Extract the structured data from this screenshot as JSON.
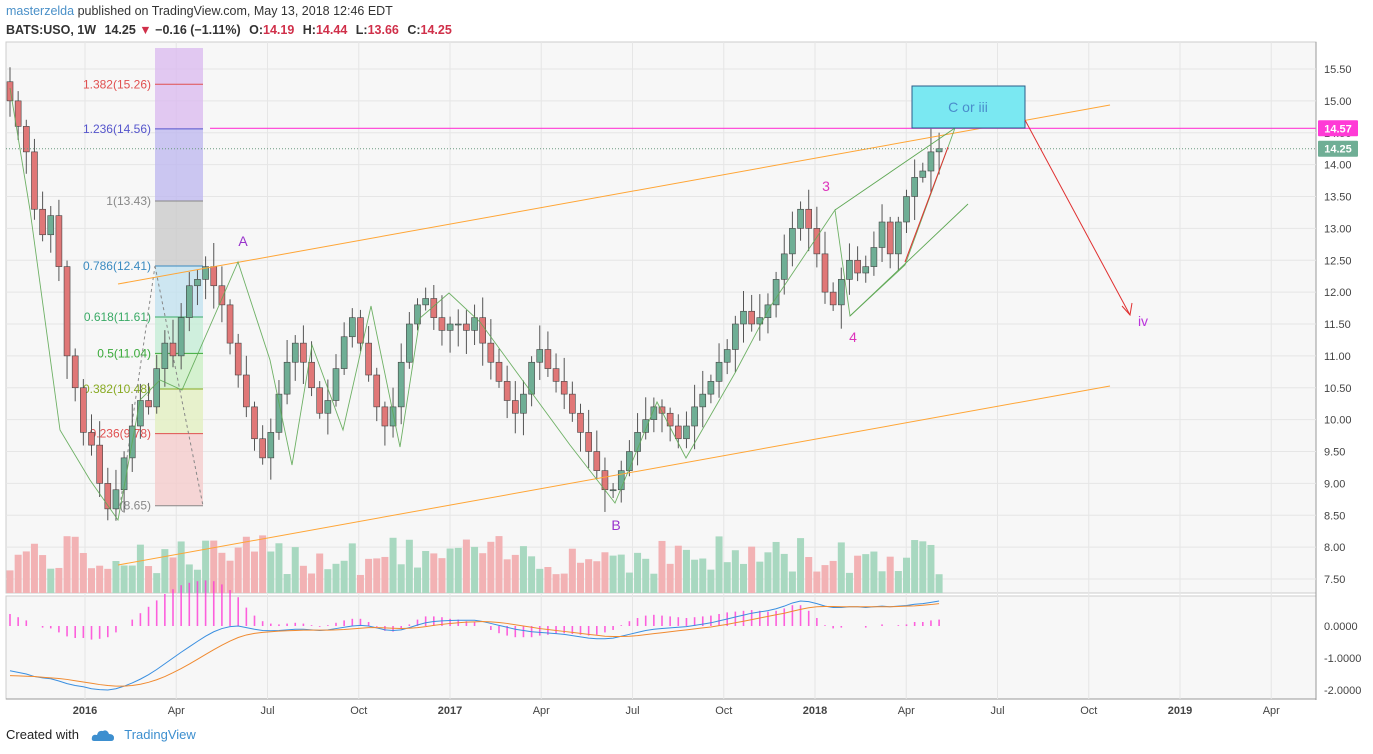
{
  "header": {
    "author": "masterzelda",
    "published_text": "published on TradingView.com, May 13, 2018 12:46 EDT",
    "symbol": "BATS:USO, 1W",
    "last": "14.25",
    "change": "−0.16 (−1.11%)",
    "open_label": "O:",
    "open": "14.19",
    "high_label": "H:",
    "high": "14.44",
    "low_label": "L:",
    "low": "13.66",
    "close_label": "C:",
    "close": "14.25"
  },
  "footer": {
    "created_with": "Created with",
    "brand": "TradingView"
  },
  "colors": {
    "up": "#6fae95",
    "down": "#e07777",
    "up_vol": "#a8d8c0",
    "down_vol": "#f2b2b4",
    "channel": "#ffa535",
    "magenta_line": "#ff3ad6",
    "wave_label": "#c040e0",
    "green_wave": "#5fa855",
    "target_arrow": "#e03030",
    "box": "#7ae8f2",
    "price_badge": "#6fae95",
    "target_badge": "#ff3ad6"
  },
  "chart_data": {
    "type": "candlestick",
    "title": "",
    "y_axis": {
      "min": 7.3,
      "max": 15.8,
      "ticks": [
        "7.50",
        "8.00",
        "8.50",
        "9.00",
        "9.50",
        "10.00",
        "10.50",
        "11.00",
        "11.50",
        "12.00",
        "12.50",
        "13.00",
        "13.50",
        "14.00",
        "14.50",
        "15.00",
        "15.50"
      ]
    },
    "x_axis_labels": [
      {
        "text": "2016",
        "date": "2016-01"
      },
      {
        "text": "Apr",
        "date": "2016-04"
      },
      {
        "text": "Jul",
        "date": "2016-07"
      },
      {
        "text": "Oct",
        "date": "2016-10"
      },
      {
        "text": "2017",
        "date": "2017-01"
      },
      {
        "text": "Apr",
        "date": "2017-04"
      },
      {
        "text": "Jul",
        "date": "2017-07"
      },
      {
        "text": "Oct",
        "date": "2017-10"
      },
      {
        "text": "2018",
        "date": "2018-01"
      },
      {
        "text": "Apr",
        "date": "2018-04"
      },
      {
        "text": "Jul",
        "date": "2018-07"
      },
      {
        "text": "Oct",
        "date": "2018-10"
      },
      {
        "text": "2019",
        "date": "2019-01"
      },
      {
        "text": "Apr",
        "date": "2019-04"
      }
    ],
    "close_series": [
      15.0,
      14.6,
      14.2,
      13.3,
      12.9,
      13.2,
      12.4,
      11.0,
      10.5,
      9.8,
      9.6,
      9.0,
      8.6,
      8.9,
      9.4,
      9.9,
      10.3,
      10.2,
      10.8,
      11.2,
      11.0,
      11.6,
      12.1,
      12.2,
      12.4,
      12.1,
      11.8,
      11.2,
      10.7,
      10.2,
      9.7,
      9.4,
      9.8,
      10.4,
      10.9,
      11.2,
      10.9,
      10.5,
      10.1,
      10.3,
      10.8,
      11.3,
      11.6,
      11.2,
      10.7,
      10.2,
      9.9,
      10.2,
      10.9,
      11.5,
      11.8,
      11.9,
      11.6,
      11.4,
      11.5,
      11.5,
      11.4,
      11.6,
      11.2,
      10.9,
      10.6,
      10.3,
      10.1,
      10.4,
      10.9,
      11.1,
      10.8,
      10.6,
      10.4,
      10.1,
      9.8,
      9.5,
      9.2,
      8.9,
      8.9,
      9.2,
      9.5,
      9.8,
      10.0,
      10.2,
      10.1,
      9.9,
      9.7,
      9.9,
      10.2,
      10.4,
      10.6,
      10.9,
      11.1,
      11.5,
      11.7,
      11.5,
      11.6,
      11.8,
      12.2,
      12.6,
      13.0,
      13.3,
      13.0,
      12.6,
      12.0,
      11.8,
      12.2,
      12.5,
      12.3,
      12.4,
      12.7,
      13.1,
      12.6,
      13.1,
      13.5,
      13.8,
      13.9,
      14.2,
      14.25
    ],
    "volume_axis_hidden": true,
    "indicator": {
      "name": "MACD",
      "y_ticks": [
        "0.0000",
        "-1.0000",
        "-2.0000"
      ],
      "y_min": -2.2,
      "y_max": 0.9,
      "macd": [
        -1.4,
        -1.45,
        -1.5,
        -1.58,
        -1.62,
        -1.65,
        -1.72,
        -1.8,
        -1.86,
        -1.9,
        -1.96,
        -1.99,
        -2.0,
        -1.96,
        -1.88,
        -1.78,
        -1.66,
        -1.52,
        -1.36,
        -1.18,
        -1.0,
        -0.82,
        -0.65,
        -0.48,
        -0.32,
        -0.18,
        -0.08,
        -0.02,
        0.0,
        -0.05,
        -0.1,
        -0.14,
        -0.15,
        -0.14,
        -0.12,
        -0.1,
        -0.1,
        -0.12,
        -0.14,
        -0.12,
        -0.08,
        -0.04,
        0.0,
        0.02,
        0.0,
        -0.06,
        -0.12,
        -0.14,
        -0.12,
        -0.05,
        0.03,
        0.1,
        0.14,
        0.16,
        0.17,
        0.18,
        0.18,
        0.18,
        0.14,
        0.08,
        0.02,
        -0.04,
        -0.1,
        -0.14,
        -0.18,
        -0.2,
        -0.22,
        -0.24,
        -0.26,
        -0.3,
        -0.34,
        -0.38,
        -0.4,
        -0.4,
        -0.38,
        -0.32,
        -0.26,
        -0.2,
        -0.14,
        -0.1,
        -0.08,
        -0.06,
        -0.04,
        -0.02,
        0.02,
        0.06,
        0.1,
        0.16,
        0.22,
        0.28,
        0.34,
        0.4,
        0.44,
        0.48,
        0.54,
        0.62,
        0.72,
        0.78,
        0.76,
        0.7,
        0.62,
        0.58,
        0.58,
        0.6,
        0.6,
        0.58,
        0.6,
        0.62,
        0.6,
        0.62,
        0.64,
        0.68,
        0.7,
        0.74,
        0.78
      ],
      "signal": [
        -1.55,
        -1.56,
        -1.57,
        -1.58,
        -1.6,
        -1.62,
        -1.64,
        -1.67,
        -1.71,
        -1.75,
        -1.79,
        -1.83,
        -1.86,
        -1.88,
        -1.88,
        -1.86,
        -1.82,
        -1.76,
        -1.68,
        -1.58,
        -1.46,
        -1.33,
        -1.19,
        -1.04,
        -0.89,
        -0.74,
        -0.6,
        -0.47,
        -0.36,
        -0.28,
        -0.23,
        -0.2,
        -0.18,
        -0.16,
        -0.15,
        -0.14,
        -0.13,
        -0.13,
        -0.13,
        -0.13,
        -0.12,
        -0.11,
        -0.09,
        -0.07,
        -0.05,
        -0.05,
        -0.06,
        -0.07,
        -0.08,
        -0.07,
        -0.05,
        -0.02,
        0.02,
        0.05,
        0.08,
        0.1,
        0.12,
        0.13,
        0.14,
        0.13,
        0.11,
        0.08,
        0.04,
        0.0,
        -0.04,
        -0.08,
        -0.11,
        -0.14,
        -0.17,
        -0.2,
        -0.23,
        -0.26,
        -0.29,
        -0.32,
        -0.33,
        -0.33,
        -0.32,
        -0.3,
        -0.27,
        -0.24,
        -0.21,
        -0.18,
        -0.15,
        -0.12,
        -0.09,
        -0.06,
        -0.03,
        0.01,
        0.05,
        0.1,
        0.15,
        0.2,
        0.25,
        0.3,
        0.35,
        0.4,
        0.46,
        0.52,
        0.57,
        0.6,
        0.61,
        0.61,
        0.6,
        0.6,
        0.6,
        0.6,
        0.6,
        0.6,
        0.6,
        0.61,
        0.62,
        0.63,
        0.65,
        0.67,
        0.7
      ]
    },
    "fibonacci_levels": [
      {
        "ratio": "1.382",
        "price": "15.26",
        "label": "1.382(15.26)",
        "color": "#e05050"
      },
      {
        "ratio": "1.236",
        "price": "14.56",
        "label": "1.236(14.56)",
        "color": "#5555cc"
      },
      {
        "ratio": "1",
        "price": "13.43",
        "label": "1(13.43)",
        "color": "#888888"
      },
      {
        "ratio": "0.786",
        "price": "12.41",
        "label": "0.786(12.41)",
        "color": "#3a8ac0"
      },
      {
        "ratio": "0.618",
        "price": "11.61",
        "label": "0.618(11.61)",
        "color": "#3aaa66"
      },
      {
        "ratio": "0.5",
        "price": "11.04",
        "label": "0.5(11.04)",
        "color": "#3aaa3a"
      },
      {
        "ratio": "0.382",
        "price": "10.48",
        "label": "0.382(10.48)",
        "color": "#88aa22"
      },
      {
        "ratio": "0.236",
        "price": "9.78",
        "label": "0.236(9.78)",
        "color": "#e05050"
      },
      {
        "ratio": "0",
        "price": "8.65",
        "label": "0(8.65)",
        "color": "#888888"
      }
    ],
    "wave_labels": [
      "A",
      "B",
      "3",
      "4",
      "iv"
    ],
    "target_box_text": "C  or  iii",
    "price_badges": [
      {
        "text": "14.57",
        "value": 14.57
      },
      {
        "text": "14.25",
        "value": 14.25
      }
    ]
  }
}
